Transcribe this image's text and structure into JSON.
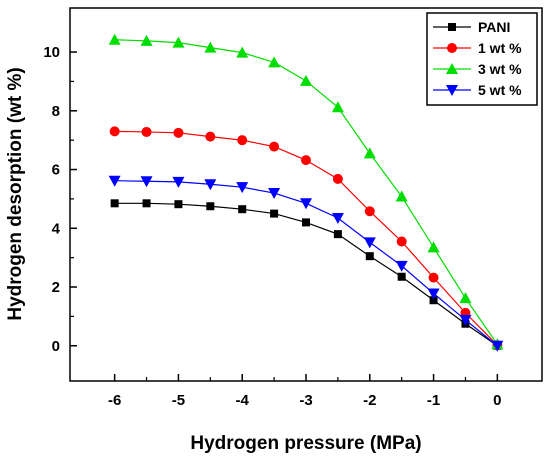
{
  "chart_data": {
    "type": "line",
    "title": "",
    "xlabel": "Hydrogen pressure (MPa)",
    "ylabel": "Hydrogen desorption (wt %)",
    "xlim": [
      -6.7,
      0.7
    ],
    "ylim": [
      -1.2,
      11.5
    ],
    "x_ticks": [
      -6,
      -5,
      -4,
      -3,
      -2,
      -1,
      0
    ],
    "y_ticks": [
      0,
      2,
      4,
      6,
      8,
      10
    ],
    "grid": false,
    "legend_position": "top-right",
    "x": [
      -6,
      -5.5,
      -5,
      -4.5,
      -4,
      -3.5,
      -3,
      -2.5,
      -2,
      -1.5,
      -1,
      -0.5,
      0
    ],
    "series": [
      {
        "name": "PANI",
        "marker": "square",
        "color": "#000000",
        "values": [
          4.85,
          4.85,
          4.82,
          4.75,
          4.65,
          4.5,
          4.2,
          3.8,
          3.05,
          2.35,
          1.55,
          0.75,
          0.0
        ]
      },
      {
        "name": "1 wt %",
        "marker": "circle",
        "color": "#ff0000",
        "values": [
          7.3,
          7.28,
          7.25,
          7.12,
          7.0,
          6.78,
          6.32,
          5.68,
          4.58,
          3.55,
          2.32,
          1.12,
          0.02
        ]
      },
      {
        "name": "3 wt %",
        "marker": "triangle-up",
        "color": "#00dd00",
        "values": [
          10.42,
          10.38,
          10.32,
          10.15,
          9.98,
          9.65,
          9.02,
          8.12,
          6.55,
          5.08,
          3.35,
          1.62,
          0.05
        ]
      },
      {
        "name": "5 wt %",
        "marker": "triangle-down",
        "color": "#0000ff",
        "values": [
          5.62,
          5.6,
          5.58,
          5.5,
          5.4,
          5.2,
          4.85,
          4.35,
          3.52,
          2.72,
          1.78,
          0.88,
          0.0
        ]
      }
    ]
  }
}
